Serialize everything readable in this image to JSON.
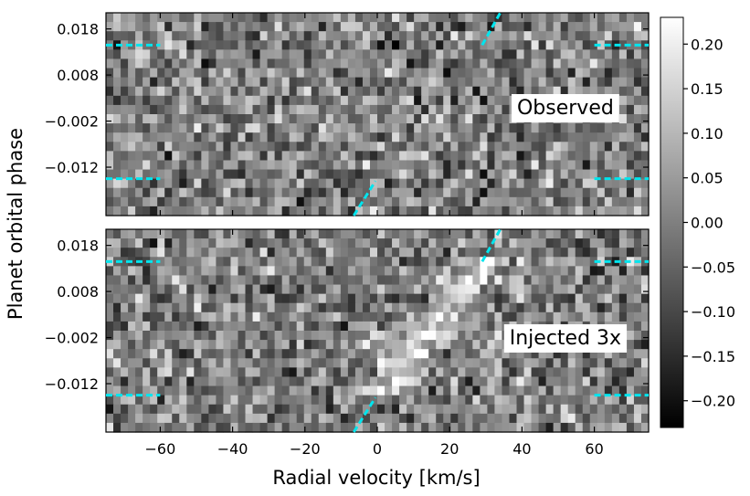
{
  "chart_data": {
    "type": "heatmap",
    "figure": {
      "ylabel": "Planet orbital phase",
      "xlabel": "Radial velocity [km/s]",
      "xlim": [
        -75,
        75
      ],
      "xticks": [
        -60,
        -40,
        -20,
        0,
        20,
        40,
        60
      ],
      "xtick_labels": [
        "−60",
        "−40",
        "−20",
        "0",
        "20",
        "40",
        "60"
      ]
    },
    "panels": [
      {
        "label": "Observed",
        "ylim": [
          -0.0225,
          0.0215
        ],
        "yticks": [
          0.018,
          0.008,
          -0.002,
          -0.012
        ],
        "ytick_labels": [
          "0.018",
          "0.008",
          "−0.002",
          "−0.012"
        ],
        "injection_scale": 0,
        "ingress_phase": 0.0145,
        "egress_phase": -0.0145,
        "trail": {
          "phase": [
            -0.0225,
            -0.015,
            0.0145,
            0.0215
          ],
          "rv": [
            -6.5,
            -0.5,
            29.0,
            34.0
          ]
        }
      },
      {
        "label": "Injected 3x",
        "ylim": [
          -0.0225,
          0.0215
        ],
        "yticks": [
          0.018,
          0.008,
          -0.002,
          -0.012
        ],
        "ytick_labels": [
          "0.018",
          "0.008",
          "−0.002",
          "−0.012"
        ],
        "injection_scale": 3,
        "ingress_phase": 0.0145,
        "egress_phase": -0.0145,
        "trail": {
          "phase": [
            -0.0225,
            -0.015,
            0.0145,
            0.0215
          ],
          "rv": [
            -6.5,
            -0.5,
            29.0,
            34.0
          ]
        }
      }
    ],
    "colorbar": {
      "colormap": "gray",
      "vmin": -0.23,
      "vmax": 0.23,
      "ticks": [
        0.2,
        0.15,
        0.1,
        0.05,
        0.0,
        -0.05,
        -0.1,
        -0.15,
        -0.2
      ],
      "tick_labels": [
        "0.20",
        "0.15",
        "0.10",
        "0.05",
        "0.00",
        "−0.05",
        "−0.10",
        "−0.15",
        "−0.20"
      ]
    },
    "grid": false,
    "marker_color": "#00e5ee"
  }
}
